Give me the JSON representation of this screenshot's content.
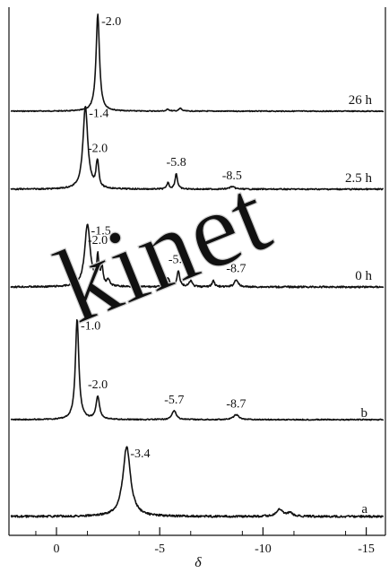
{
  "chart_data": {
    "type": "line",
    "xlabel": "δ",
    "xlim": [
      2,
      -16
    ],
    "x_ticks": [
      0,
      -5,
      -10,
      -15
    ],
    "x_tick_labels": [
      "0",
      "-5",
      "-10",
      "-15"
    ],
    "series": [
      {
        "name": "26 h",
        "peaks": [
          {
            "x": -2.0,
            "height": 1.0,
            "width": 0.1,
            "label": "-2.0"
          },
          {
            "x": -5.4,
            "height": 0.02,
            "width": 0.08
          },
          {
            "x": -6.0,
            "height": 0.03,
            "width": 0.08
          }
        ]
      },
      {
        "name": "2.5 h",
        "peaks": [
          {
            "x": -1.4,
            "height": 1.0,
            "width": 0.14,
            "label": "-1.4"
          },
          {
            "x": -1.95,
            "height": 0.12,
            "width": 0.06
          },
          {
            "x": -2.0,
            "height": 0.24,
            "width": 0.07,
            "label": "-2.0"
          },
          {
            "x": -5.4,
            "height": 0.08,
            "width": 0.06
          },
          {
            "x": -5.8,
            "height": 0.19,
            "width": 0.07,
            "label": "-5.8"
          },
          {
            "x": -8.5,
            "height": 0.03,
            "width": 0.15,
            "label": "-8.5"
          }
        ]
      },
      {
        "name": "0 h",
        "peaks": [
          {
            "x": -1.5,
            "height": 1.0,
            "width": 0.16,
            "label": "-1.5"
          },
          {
            "x": -2.0,
            "height": 0.45,
            "width": 0.06,
            "label": "-2.0"
          },
          {
            "x": -2.2,
            "height": 0.3,
            "width": 0.06
          },
          {
            "x": -2.5,
            "height": 0.1,
            "width": 0.08
          },
          {
            "x": -5.4,
            "height": 0.14,
            "width": 0.08
          },
          {
            "x": -5.9,
            "height": 0.26,
            "width": 0.08,
            "label": "-5.9"
          },
          {
            "x": -6.5,
            "height": 0.1,
            "width": 0.08
          },
          {
            "x": -7.6,
            "height": 0.1,
            "width": 0.07
          },
          {
            "x": -8.7,
            "height": 0.12,
            "width": 0.1,
            "label": "-8.7"
          }
        ]
      },
      {
        "name": "b",
        "peaks": [
          {
            "x": -1.0,
            "height": 1.0,
            "width": 0.1,
            "label": "-1.0"
          },
          {
            "x": -2.0,
            "height": 0.23,
            "width": 0.1,
            "label": "-2.0"
          },
          {
            "x": -5.7,
            "height": 0.09,
            "width": 0.12,
            "label": "-5.7"
          },
          {
            "x": -8.7,
            "height": 0.05,
            "width": 0.15,
            "label": "-8.7"
          }
        ]
      },
      {
        "name": "a",
        "peaks": [
          {
            "x": -3.4,
            "height": 1.0,
            "width": 0.22,
            "label": "-3.4"
          },
          {
            "x": -10.8,
            "height": 0.1,
            "width": 0.18
          },
          {
            "x": -11.3,
            "height": 0.05,
            "width": 0.15
          }
        ]
      }
    ],
    "annotations": [
      {
        "text": "kinet"
      }
    ]
  }
}
